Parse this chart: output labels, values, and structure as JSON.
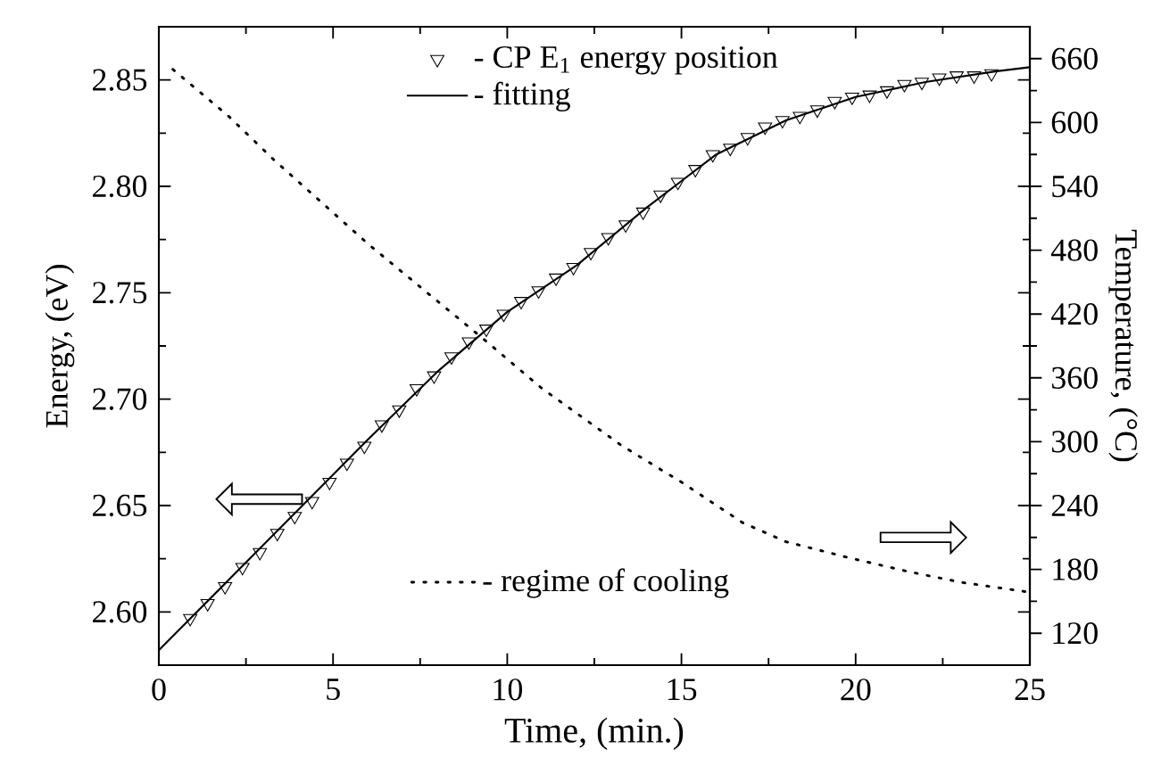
{
  "chart_data": {
    "type": "scatter",
    "xlabel": "Time, (min.)",
    "ylabel": "Energy, (eV)",
    "y2label": "Temperature, (°C)",
    "xlim": [
      0,
      25
    ],
    "xticks": [
      0,
      5,
      10,
      15,
      20,
      25
    ],
    "ylim": [
      2.575,
      2.875
    ],
    "yticks": [
      {
        "value": 2.6,
        "label": "2.60"
      },
      2.65,
      {
        "value": 2.7,
        "label": "2.70"
      },
      2.75,
      {
        "value": 2.8,
        "label": "2.80"
      },
      2.85
    ],
    "y2lim": [
      90,
      690
    ],
    "y2ticks": [
      120,
      180,
      240,
      300,
      360,
      420,
      480,
      540,
      600,
      660
    ],
    "legend": "top",
    "grid": false,
    "series": [
      {
        "name": "- CP E$_{1}$ energy position",
        "marker": "triangle",
        "color": "#000000",
        "x": [
          0.9,
          1.4,
          1.9,
          2.4,
          2.9,
          3.4,
          3.9,
          4.4,
          4.9,
          5.4,
          5.9,
          6.4,
          6.9,
          7.4,
          7.9,
          8.4,
          8.9,
          9.4,
          9.9,
          10.4,
          10.9,
          11.4,
          11.9,
          12.4,
          12.9,
          13.4,
          13.9,
          14.4,
          14.9,
          15.4,
          15.9,
          16.4,
          16.9,
          17.4,
          17.9,
          18.4,
          18.9,
          19.4,
          19.9,
          20.4,
          20.9,
          21.4,
          21.9,
          22.4,
          22.9,
          23.4,
          23.9
        ],
        "values": [
          2.597,
          2.604,
          2.612,
          2.621,
          2.628,
          2.637,
          2.645,
          2.652,
          2.661,
          2.67,
          2.678,
          2.688,
          2.695,
          2.705,
          2.711,
          2.72,
          2.727,
          2.733,
          2.74,
          2.746,
          2.751,
          2.757,
          2.762,
          2.769,
          2.776,
          2.782,
          2.788,
          2.796,
          2.802,
          2.808,
          2.815,
          2.818,
          2.823,
          2.828,
          2.831,
          2.833,
          2.836,
          2.84,
          2.842,
          2.843,
          2.845,
          2.848,
          2.849,
          2.851,
          2.852,
          2.852,
          2.853
        ]
      },
      {
        "name": "- fitting",
        "type": "line",
        "line_style": "solid",
        "color": "#000000",
        "x": [
          0,
          2,
          4,
          6,
          8,
          10,
          12,
          14,
          16,
          18,
          20,
          22,
          24,
          25
        ],
        "values": [
          2.582,
          2.615,
          2.648,
          2.681,
          2.713,
          2.741,
          2.763,
          2.79,
          2.815,
          2.831,
          2.842,
          2.849,
          2.854,
          2.856
        ]
      },
      {
        "name": "- regime of cooling",
        "type": "line",
        "line_style": "dotted",
        "axis": "y2",
        "color": "#000000",
        "x": [
          0.4,
          2,
          3.3,
          6,
          8,
          9.3,
          11,
          13.3,
          15,
          16.75,
          18,
          19.8,
          21.5,
          23,
          24.9
        ],
        "values": [
          650,
          606,
          565,
          486,
          432,
          397,
          350,
          296,
          262,
          224,
          206,
          191,
          178,
          168,
          159
        ]
      }
    ]
  }
}
